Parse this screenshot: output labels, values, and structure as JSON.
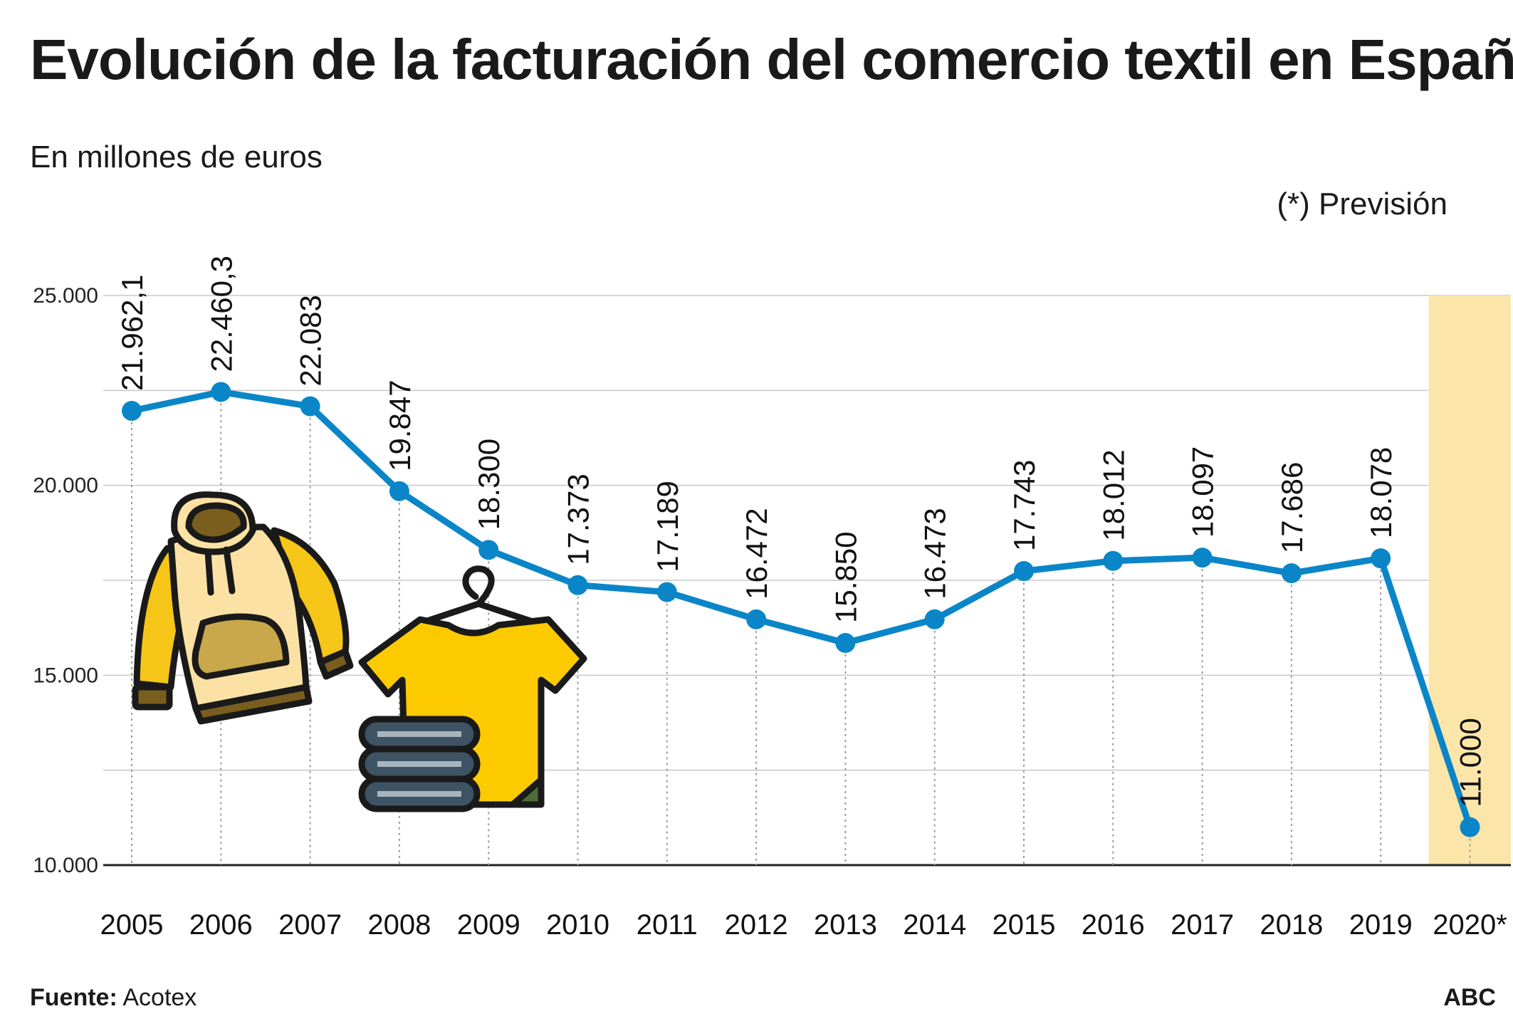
{
  "header": {
    "title": "Evolución de la facturación del comercio textil en España",
    "subtitle": "En millones de euros",
    "note": "(*) Previsión"
  },
  "footer": {
    "source_label": "Fuente:",
    "source_value": "Acotex",
    "brand": "ABC"
  },
  "colors": {
    "line": "#0a86c8",
    "forecast_band": "#fbe5a9",
    "grid": "#c8c8c8",
    "axis": "#222222"
  },
  "icons": [
    "hoodie-icon",
    "tshirt-on-hanger-icon",
    "folded-clothes-icon"
  ],
  "chart_data": {
    "type": "line",
    "title": "Evolución de la facturación del comercio textil en España",
    "subtitle": "En millones de euros",
    "categories": [
      "2005",
      "2006",
      "2007",
      "2008",
      "2009",
      "2010",
      "2011",
      "2012",
      "2013",
      "2014",
      "2015",
      "2016",
      "2017",
      "2018",
      "2019",
      "2020*"
    ],
    "series": [
      {
        "values": [
          21962.1,
          22460.3,
          22083,
          19847,
          18300,
          17373,
          17189,
          16472,
          15850,
          16473,
          17743,
          18012,
          18097,
          17686,
          18078,
          11000
        ],
        "labels": [
          "21.962,1",
          "22.460,3",
          "22.083",
          "19.847",
          "18.300",
          "17.373",
          "17.189",
          "16.472",
          "15.850",
          "16.473",
          "17.743",
          "18.012",
          "18.097",
          "17.686",
          "18.078",
          "11.000"
        ]
      }
    ],
    "ylim": [
      10000,
      25000
    ],
    "yticks": [
      10000,
      15000,
      20000,
      25000
    ],
    "ytick_labels": [
      "10.000",
      "15.000",
      "20.000",
      "25.000"
    ],
    "minor_gridlines": [
      12500,
      17500,
      22500
    ],
    "forecast_category": "2020*",
    "grid": true,
    "legend": "none"
  }
}
